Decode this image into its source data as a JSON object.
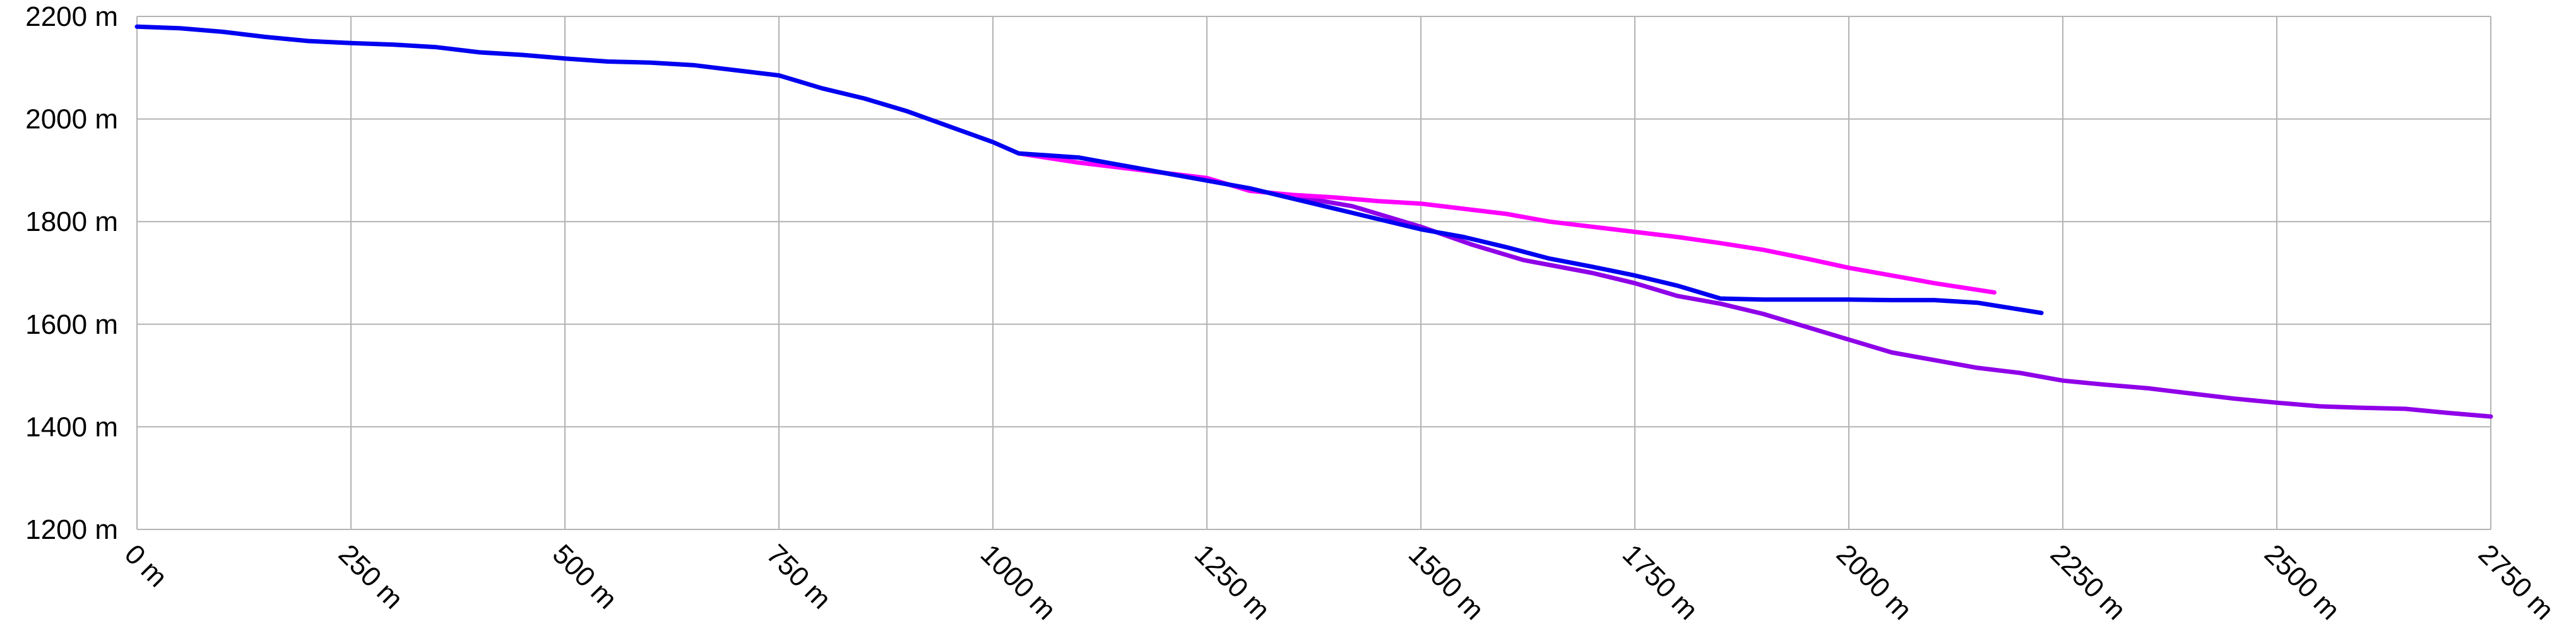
{
  "chart_data": {
    "type": "line",
    "title": "",
    "xlabel": "",
    "ylabel": "",
    "xlim": [
      0,
      2750
    ],
    "ylim": [
      1200,
      2200
    ],
    "x_unit": "m",
    "y_unit": "m",
    "x_ticks": [
      "0 m",
      "250 m",
      "500 m",
      "750 m",
      "1000 m",
      "1250 m",
      "1500 m",
      "1750 m",
      "2000 m",
      "2250 m",
      "2500 m",
      "2750 m"
    ],
    "y_ticks": [
      "1200 m",
      "1400 m",
      "1600 m",
      "1800 m",
      "2000 m",
      "2200 m"
    ],
    "grid": true,
    "legend": "none",
    "series": [
      {
        "color": "#8f00e8",
        "points": [
          [
            1350,
            1850
          ],
          [
            1420,
            1830
          ],
          [
            1500,
            1790
          ],
          [
            1560,
            1755
          ],
          [
            1620,
            1725
          ],
          [
            1700,
            1700
          ],
          [
            1750,
            1680
          ],
          [
            1800,
            1655
          ],
          [
            1850,
            1640
          ],
          [
            1900,
            1620
          ],
          [
            1950,
            1595
          ],
          [
            2000,
            1570
          ],
          [
            2050,
            1545
          ],
          [
            2100,
            1530
          ],
          [
            2150,
            1515
          ],
          [
            2200,
            1505
          ],
          [
            2250,
            1490
          ],
          [
            2300,
            1482
          ],
          [
            2350,
            1475
          ],
          [
            2400,
            1465
          ],
          [
            2450,
            1455
          ],
          [
            2500,
            1447
          ],
          [
            2550,
            1440
          ],
          [
            2600,
            1437
          ],
          [
            2650,
            1435
          ],
          [
            2700,
            1427
          ],
          [
            2750,
            1420
          ]
        ]
      },
      {
        "color": "#ff00ff",
        "points": [
          [
            1030,
            1933
          ],
          [
            1100,
            1915
          ],
          [
            1150,
            1905
          ],
          [
            1200,
            1895
          ],
          [
            1250,
            1885
          ],
          [
            1300,
            1860
          ],
          [
            1350,
            1852
          ],
          [
            1400,
            1847
          ],
          [
            1450,
            1840
          ],
          [
            1500,
            1835
          ],
          [
            1550,
            1825
          ],
          [
            1600,
            1815
          ],
          [
            1650,
            1800
          ],
          [
            1700,
            1790
          ],
          [
            1750,
            1780
          ],
          [
            1800,
            1770
          ],
          [
            1850,
            1758
          ],
          [
            1900,
            1745
          ],
          [
            1950,
            1728
          ],
          [
            2000,
            1710
          ],
          [
            2050,
            1695
          ],
          [
            2100,
            1680
          ],
          [
            2170,
            1662
          ]
        ]
      },
      {
        "color": "#0000f0",
        "points": [
          [
            0,
            2180
          ],
          [
            50,
            2177
          ],
          [
            100,
            2170
          ],
          [
            150,
            2160
          ],
          [
            200,
            2152
          ],
          [
            250,
            2148
          ],
          [
            300,
            2145
          ],
          [
            350,
            2140
          ],
          [
            400,
            2130
          ],
          [
            450,
            2125
          ],
          [
            500,
            2118
          ],
          [
            550,
            2112
          ],
          [
            600,
            2110
          ],
          [
            650,
            2105
          ],
          [
            700,
            2095
          ],
          [
            750,
            2085
          ],
          [
            800,
            2060
          ],
          [
            850,
            2040
          ],
          [
            900,
            2015
          ],
          [
            950,
            1985
          ],
          [
            1000,
            1955
          ],
          [
            1030,
            1933
          ],
          [
            1100,
            1925
          ],
          [
            1150,
            1910
          ],
          [
            1200,
            1895
          ],
          [
            1250,
            1880
          ],
          [
            1300,
            1865
          ],
          [
            1350,
            1845
          ],
          [
            1400,
            1825
          ],
          [
            1450,
            1805
          ],
          [
            1500,
            1785
          ],
          [
            1550,
            1770
          ],
          [
            1600,
            1750
          ],
          [
            1650,
            1728
          ],
          [
            1700,
            1712
          ],
          [
            1750,
            1695
          ],
          [
            1800,
            1675
          ],
          [
            1850,
            1650
          ],
          [
            1900,
            1648
          ],
          [
            1950,
            1648
          ],
          [
            2000,
            1648
          ],
          [
            2050,
            1647
          ],
          [
            2100,
            1647
          ],
          [
            2150,
            1642
          ],
          [
            2225,
            1622
          ]
        ]
      }
    ]
  }
}
